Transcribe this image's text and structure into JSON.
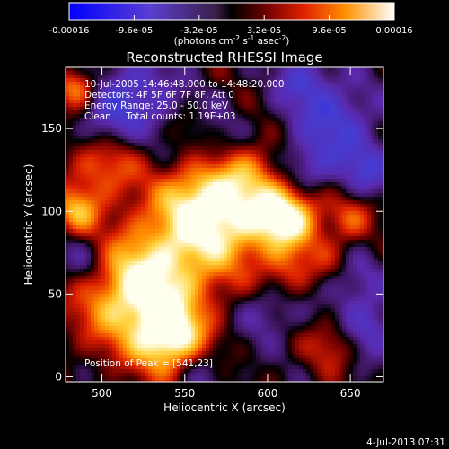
{
  "chart_data": {
    "type": "heatmap",
    "title": "Reconstructed RHESSI Image",
    "xlabel": "Heliocentric X (arcsec)",
    "ylabel": "Heliocentric Y (arcsec)",
    "xlim": [
      478,
      670
    ],
    "ylim": [
      -3,
      187
    ],
    "xticks": [
      500,
      550,
      600,
      650
    ],
    "yticks": [
      0,
      50,
      100,
      150
    ],
    "colorbar": {
      "ticks": [
        "-0.00016",
        "-9.6e-05",
        "-3.2e-05",
        "3.2e-05",
        "9.6e-05",
        "0.00016"
      ],
      "tick_values": [
        -0.00016,
        -9.6e-05,
        -3.2e-05,
        3.2e-05,
        9.6e-05,
        0.00016
      ],
      "unit_label": "(photons cm",
      "unit_sup1": "-2",
      "unit_mid1": " s",
      "unit_sup2": "-1",
      "unit_mid2": " asec",
      "unit_sup3": "-2",
      "unit_end": ")"
    },
    "annotations": [
      "10-Jul-2005 14:46:48.000 to 14:48:20.000",
      "Detectors: 4F 5F 6F 7F 8F, Att 0",
      "Energy Range: 25.0 - 50.0 keV",
      "Clean     Total counts: 1.19E+03"
    ],
    "peak_label": "Position of Peak = [541,23]",
    "peak": [
      541,
      23
    ],
    "grid": false,
    "features": {
      "positive": [
        {
          "x": 541,
          "y": 23,
          "amp": 1.0,
          "w": 22
        },
        {
          "x": 612,
          "y": 97,
          "amp": 0.95,
          "w": 20
        },
        {
          "x": 535,
          "y": 65,
          "amp": 0.8,
          "w": 34
        },
        {
          "x": 560,
          "y": 108,
          "amp": 0.75,
          "w": 26
        },
        {
          "x": 580,
          "y": 92,
          "amp": 0.6,
          "w": 30
        },
        {
          "x": 510,
          "y": 45,
          "amp": 0.55,
          "w": 30
        },
        {
          "x": 485,
          "y": 100,
          "amp": 0.6,
          "w": 14
        },
        {
          "x": 500,
          "y": 128,
          "amp": 0.5,
          "w": 22
        },
        {
          "x": 590,
          "y": 125,
          "amp": 0.35,
          "w": 18
        },
        {
          "x": 650,
          "y": 95,
          "amp": 0.4,
          "w": 14
        },
        {
          "x": 640,
          "y": 20,
          "amp": 0.4,
          "w": 16
        },
        {
          "x": 612,
          "y": 62,
          "amp": 0.35,
          "w": 16
        },
        {
          "x": 485,
          "y": 175,
          "amp": 0.6,
          "w": 12
        },
        {
          "x": 555,
          "y": 150,
          "amp": 0.35,
          "w": 14
        },
        {
          "x": 640,
          "y": 70,
          "amp": 0.3,
          "w": 14
        }
      ],
      "negative": [
        {
          "x": 520,
          "y": 170,
          "amp": -0.55,
          "w": 24
        },
        {
          "x": 640,
          "y": 155,
          "amp": -0.55,
          "w": 26
        },
        {
          "x": 560,
          "y": 145,
          "amp": -0.4,
          "w": 20
        },
        {
          "x": 660,
          "y": 30,
          "amp": -0.5,
          "w": 18
        },
        {
          "x": 660,
          "y": 125,
          "amp": -0.45,
          "w": 16
        },
        {
          "x": 625,
          "y": 125,
          "amp": -0.4,
          "w": 16
        },
        {
          "x": 490,
          "y": 70,
          "amp": -0.35,
          "w": 18
        },
        {
          "x": 500,
          "y": 150,
          "amp": -0.35,
          "w": 16
        },
        {
          "x": 600,
          "y": 40,
          "amp": -0.35,
          "w": 18
        },
        {
          "x": 560,
          "y": 5,
          "amp": -0.3,
          "w": 16
        },
        {
          "x": 650,
          "y": 60,
          "amp": -0.35,
          "w": 18
        },
        {
          "x": 620,
          "y": 180,
          "amp": -0.4,
          "w": 16
        }
      ]
    }
  },
  "footer": {
    "timestamp": "4-Jul-2013 07:31"
  }
}
